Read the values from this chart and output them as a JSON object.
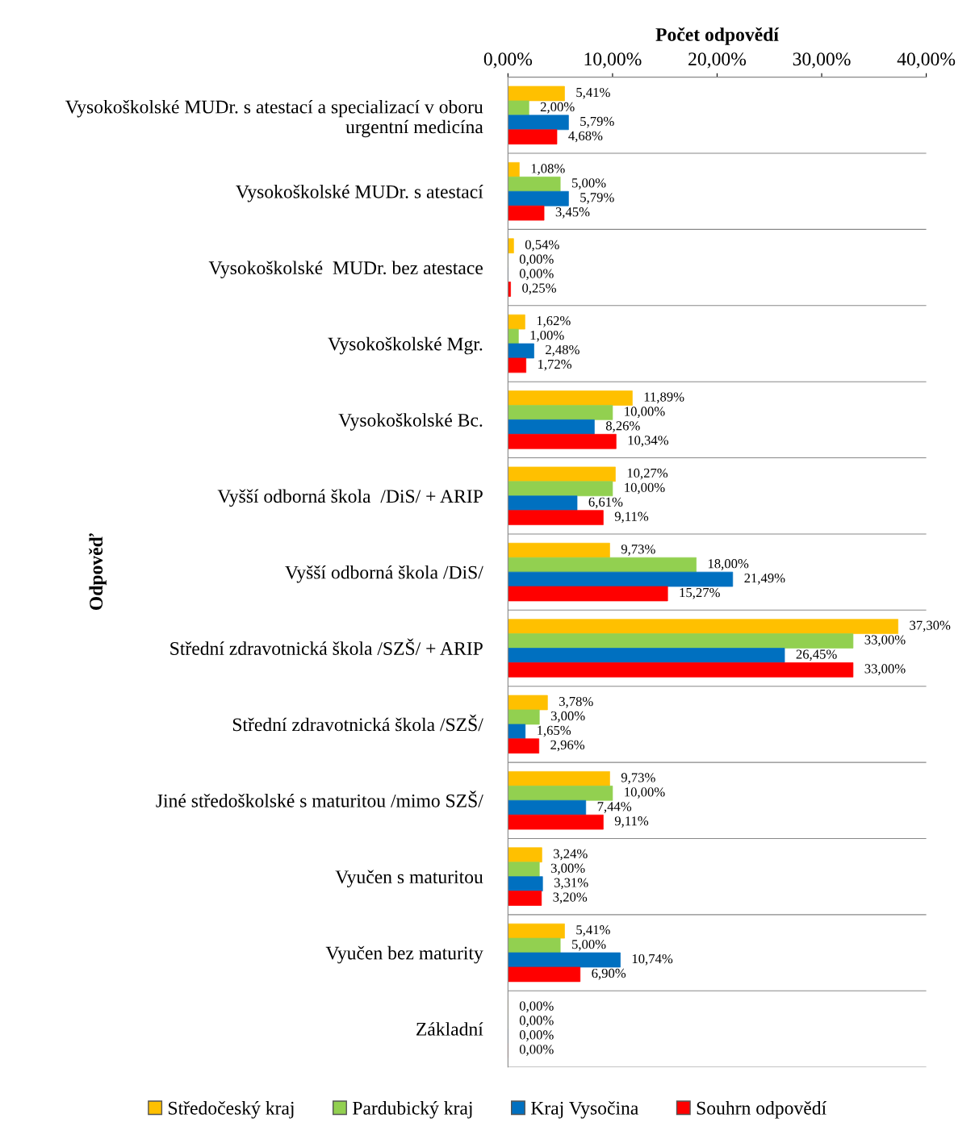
{
  "chart_data": {
    "type": "bar",
    "orientation": "horizontal",
    "xlabel": "Počet odpovědí",
    "ylabel": "Odpověď",
    "categories": [
      "Vysokoškolské MUDr. s atestací a specializací v oboru urgentní medicína",
      "Vysokoškolské MUDr. s atestací",
      "Vysokoškolské  MUDr. bez atestace",
      "Vysokoškolské Mgr.",
      "Vysokoškolské Bc.",
      "Vyšší odborná škola  /DiS/ + ARIP",
      "Vyšší odborná škola /DiS/",
      "Střední zdravotnická škola /SZŠ/ + ARIP",
      "Střední zdravotnická škola /SZŠ/",
      "Jiné středoškolské s maturitou /mimo SZŠ/",
      "Vyučen s maturitou",
      "Vyučen bez maturity",
      "Základní"
    ],
    "series": [
      {
        "name": "Středočeský kraj",
        "color": "#ffc000",
        "values": [
          5.41,
          1.08,
          0.54,
          1.62,
          11.89,
          10.27,
          9.73,
          37.3,
          3.78,
          9.73,
          3.24,
          5.41,
          0
        ],
        "value_labels": [
          "5,41%",
          "1,08%",
          "0,54%",
          "1,62%",
          "11,89%",
          "10,27%",
          "9,73%",
          "37,30%",
          "3,78%",
          "9,73%",
          "3,24%",
          "5,41%",
          "0,00%"
        ]
      },
      {
        "name": "Pardubický kraj",
        "color": "#92d050",
        "values": [
          2.0,
          5.0,
          0,
          1.0,
          10.0,
          10.0,
          18.0,
          33.0,
          3.0,
          10.0,
          3.0,
          5.0,
          0
        ],
        "value_labels": [
          "2,00%",
          "5,00%",
          "0,00%",
          "1,00%",
          "10,00%",
          "10,00%",
          "18,00%",
          "33,00%",
          "3,00%",
          "10,00%",
          "3,00%",
          "5,00%",
          "0,00%"
        ]
      },
      {
        "name": "Kraj Vysočina",
        "color": "#0070c0",
        "values": [
          5.79,
          5.79,
          0,
          2.48,
          8.26,
          6.61,
          21.49,
          26.45,
          1.65,
          7.44,
          3.31,
          10.74,
          0
        ],
        "value_labels": [
          "5,79%",
          "5,79%",
          "0,00%",
          "2,48%",
          "8,26%",
          "6,61%",
          "21,49%",
          "26,45%",
          "1,65%",
          "7,44%",
          "3,31%",
          "10,74%",
          "0,00%"
        ]
      },
      {
        "name": "Souhrn odpovědí",
        "color": "#ff0000",
        "values": [
          4.68,
          3.45,
          0.25,
          1.72,
          10.34,
          9.11,
          15.27,
          33.0,
          2.96,
          9.11,
          3.2,
          6.9,
          0
        ],
        "value_labels": [
          "4,68%",
          "3,45%",
          "0,25%",
          "1,72%",
          "10,34%",
          "9,11%",
          "15,27%",
          "33,00%",
          "2,96%",
          "9,11%",
          "3,20%",
          "6,90%",
          "0,00%"
        ]
      }
    ],
    "xlim": [
      0,
      40
    ],
    "xticks": [
      {
        "value": 0,
        "label": "0,00%"
      },
      {
        "value": 10,
        "label": "10,00%"
      },
      {
        "value": 20,
        "label": "20,00%"
      },
      {
        "value": 30,
        "label": "30,00%"
      },
      {
        "value": 40,
        "label": "40,00%"
      }
    ],
    "grid": "y",
    "legend": "bottom"
  }
}
